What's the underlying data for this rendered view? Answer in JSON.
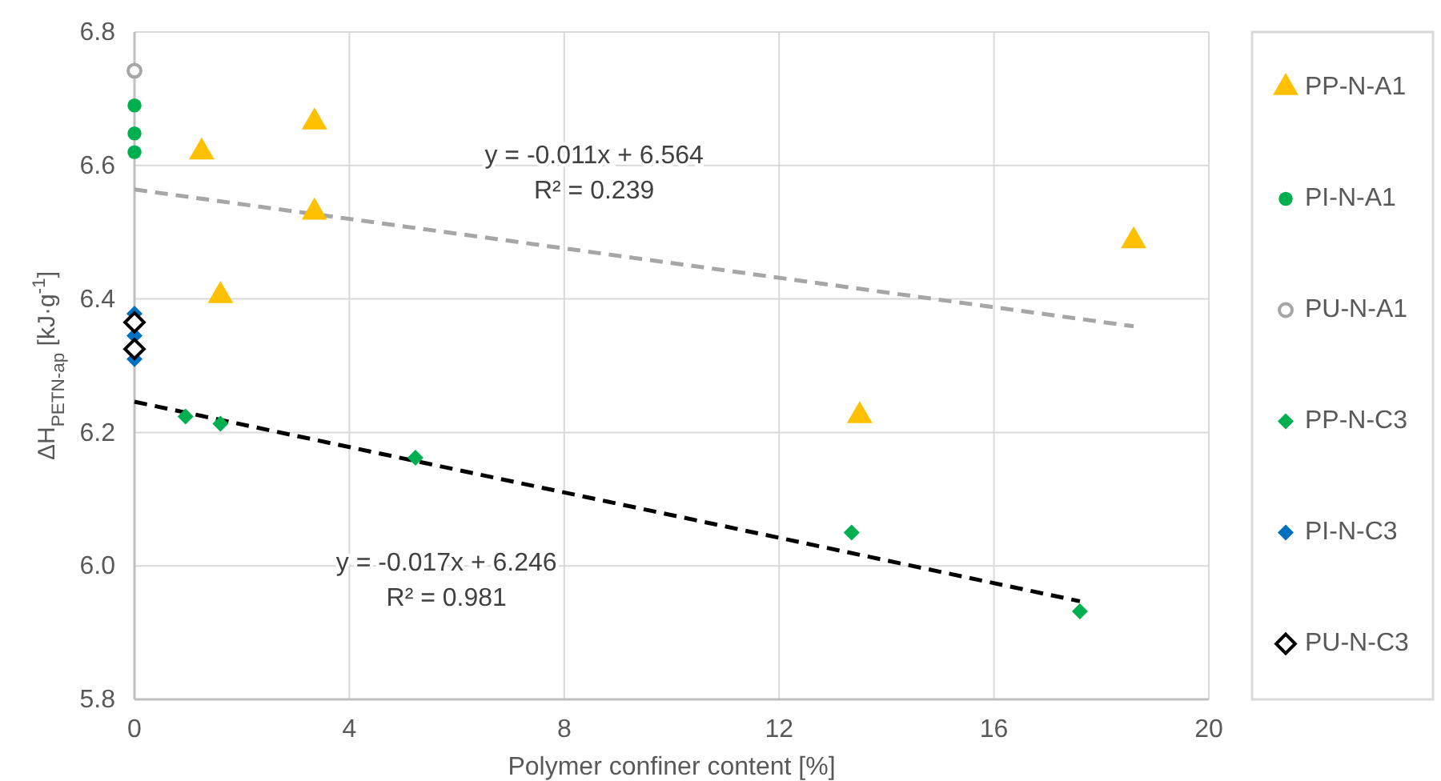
{
  "chart_data": {
    "type": "scatter",
    "xlabel": "Polymer confiner content [%]",
    "ylabel": "ΔH$_{PETN-ap}$ [kJ·g$^{-1}$]",
    "xlim": [
      0,
      20
    ],
    "xticks": [
      0,
      4,
      8,
      12,
      16,
      20
    ],
    "ylim": [
      5.8,
      6.8
    ],
    "yticks": [
      {
        "value": 5.8,
        "label": "5.8"
      },
      {
        "value": 6.0,
        "label": "6.0"
      },
      {
        "value": 6.2,
        "label": "6.2"
      },
      {
        "value": 6.4,
        "label": "6.4"
      },
      {
        "value": 6.6,
        "label": "6.6"
      },
      {
        "value": 6.8,
        "label": "6.8"
      }
    ],
    "grid": true,
    "legend": "right",
    "series": [
      {
        "name": "PP-N-A1",
        "color": "#ffc000",
        "marker": "triangle",
        "x": [
          1.25,
          3.35,
          3.35,
          1.6,
          13.5,
          18.6
        ],
        "values": [
          6.62,
          6.665,
          6.53,
          6.405,
          6.225,
          6.487
        ]
      },
      {
        "name": "PI-N-A1",
        "color": "#00b050",
        "marker": "circle",
        "x": [
          0,
          0,
          0
        ],
        "values": [
          6.69,
          6.648,
          6.62
        ]
      },
      {
        "name": "PU-N-A1",
        "color": "#a6a6a6",
        "marker": "circle-open",
        "x": [
          0
        ],
        "values": [
          6.742
        ]
      },
      {
        "name": "PP-N-C3",
        "color": "#00b050",
        "marker": "diamond",
        "x": [
          0.95,
          1.6,
          5.23,
          13.35,
          17.6
        ],
        "values": [
          6.224,
          6.213,
          6.162,
          6.05,
          5.932
        ]
      },
      {
        "name": "PI-N-C3",
        "color": "#0070c0",
        "marker": "diamond",
        "x": [
          0,
          0,
          0
        ],
        "values": [
          6.378,
          6.345,
          6.31
        ]
      },
      {
        "name": "PU-N-C3",
        "color": "#000000",
        "marker": "diamond-open",
        "x": [
          0,
          0
        ],
        "values": [
          6.365,
          6.325
        ]
      },
      {
        "type": "line",
        "color": "#a6a6a6",
        "line_style": "dashed",
        "x": [
          0,
          18.6
        ],
        "values": [
          6.564,
          6.359
        ]
      },
      {
        "type": "line",
        "color": "#000000",
        "line_style": "dashed",
        "x": [
          0,
          17.6
        ],
        "values": [
          6.246,
          5.947
        ]
      }
    ],
    "annotations": [
      "y = -0.011x + 6.564",
      "R² = 0.239",
      "y = -0.017x + 6.246",
      "R² = 0.981"
    ]
  }
}
